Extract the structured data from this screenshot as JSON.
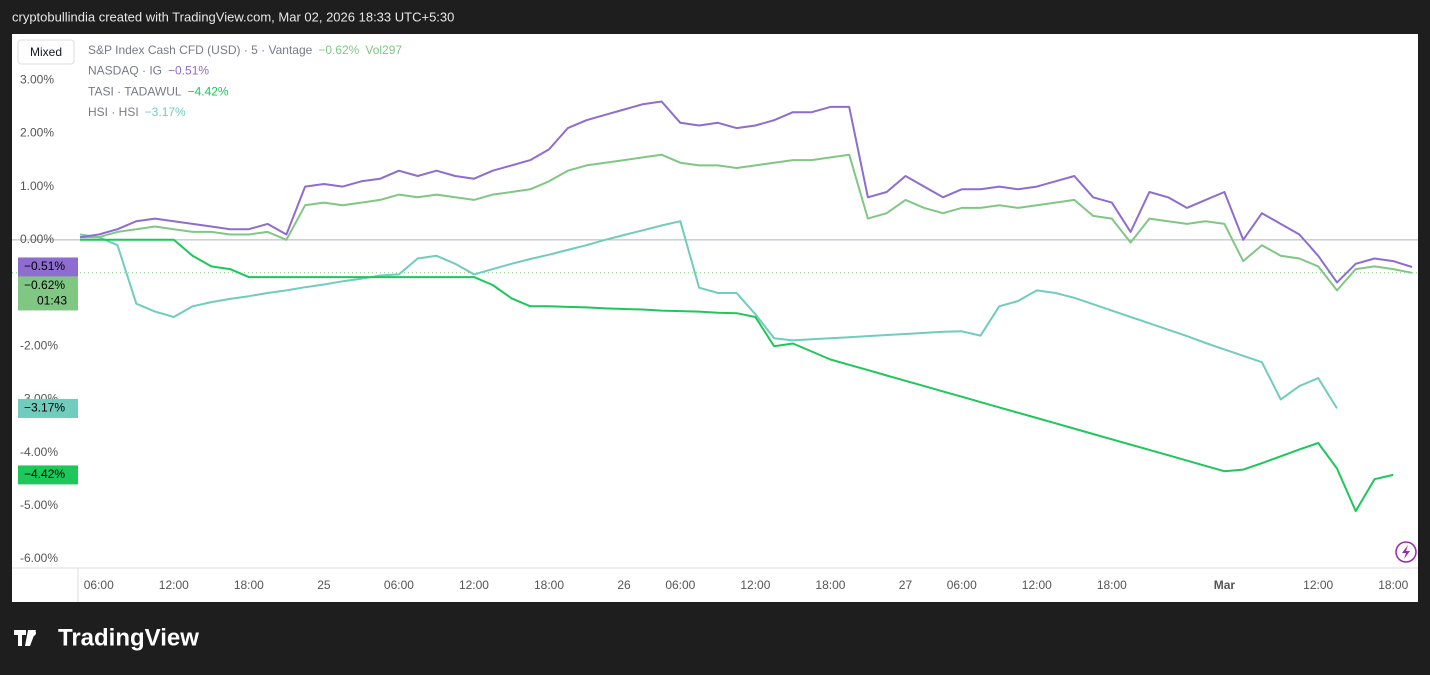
{
  "header": {
    "text": "cryptobullindia created with TradingView.com, Mar 02, 2026 18:33 UTC+5:30"
  },
  "footer": {
    "logo": "TradingView"
  },
  "toolbar": {
    "button": "Mixed"
  },
  "chart_data": {
    "type": "line",
    "categories": [
      null,
      "06:00",
      null,
      null,
      null,
      "12:00",
      null,
      null,
      null,
      "18:00",
      null,
      null,
      null,
      "25",
      null,
      null,
      null,
      "06:00",
      null,
      null,
      null,
      "12:00",
      null,
      null,
      null,
      "18:00",
      null,
      null,
      null,
      "26",
      null,
      null,
      "06:00",
      null,
      null,
      null,
      "12:00",
      null,
      null,
      null,
      "18:00",
      null,
      null,
      null,
      "27",
      null,
      null,
      "06:00",
      null,
      null,
      null,
      "12:00",
      null,
      null,
      null,
      "18:00",
      null,
      null,
      null,
      null,
      null,
      "Mar",
      null,
      null,
      null,
      null,
      "12:00",
      null,
      null,
      null,
      "18:00",
      null
    ],
    "ylim": [
      -6.17,
      3.87
    ],
    "yticks": [
      {
        "value": 3,
        "label": "3.00%"
      },
      {
        "value": 2,
        "label": "2.00%"
      },
      {
        "value": 1,
        "label": "1.00%"
      },
      {
        "value": 0,
        "label": "0.00%"
      },
      {
        "value": -1,
        "label": "-1.00%"
      },
      {
        "value": -2,
        "label": "-2.00%"
      },
      {
        "value": -3,
        "label": "-3.00%"
      },
      {
        "value": -4,
        "label": "-4.00%"
      },
      {
        "value": -5,
        "label": "-5.00%"
      },
      {
        "value": -6,
        "label": "-6.00%"
      }
    ],
    "grid": false,
    "countdown": "01:43",
    "volume": {
      "label": "Vol",
      "value": 297
    },
    "series": [
      {
        "name": "S&P Index Cash CFD (USD) · 5 · Vantage",
        "color": "#81c784",
        "change": "−0.62%",
        "values": [
          0.05,
          0.05,
          0.15,
          0.2,
          0.25,
          0.2,
          0.15,
          0.15,
          0.1,
          0.1,
          0.15,
          0.0,
          0.65,
          0.7,
          0.65,
          0.7,
          0.75,
          0.85,
          0.8,
          0.85,
          0.8,
          0.75,
          0.85,
          0.9,
          0.95,
          1.1,
          1.3,
          1.4,
          1.45,
          1.5,
          1.55,
          1.6,
          1.45,
          1.4,
          1.4,
          1.35,
          1.4,
          1.45,
          1.5,
          1.5,
          1.55,
          1.6,
          0.4,
          0.5,
          0.75,
          0.6,
          0.5,
          0.6,
          0.6,
          0.65,
          0.6,
          0.65,
          0.7,
          0.75,
          0.45,
          0.4,
          -0.05,
          0.4,
          0.35,
          0.3,
          0.35,
          0.3,
          -0.4,
          -0.1,
          -0.3,
          -0.35,
          -0.5,
          -0.95,
          -0.55,
          -0.5,
          -0.55,
          -0.62
        ]
      },
      {
        "name": "NASDAQ · IG",
        "color": "#8e6cd0",
        "change": "−0.51%",
        "values": [
          0.05,
          0.1,
          0.2,
          0.35,
          0.4,
          0.35,
          0.3,
          0.25,
          0.2,
          0.2,
          0.3,
          0.1,
          1.0,
          1.05,
          1.0,
          1.1,
          1.15,
          1.3,
          1.2,
          1.3,
          1.2,
          1.15,
          1.3,
          1.4,
          1.5,
          1.7,
          2.1,
          2.25,
          2.35,
          2.45,
          2.55,
          2.6,
          2.2,
          2.15,
          2.2,
          2.1,
          2.15,
          2.25,
          2.4,
          2.4,
          2.5,
          2.5,
          0.8,
          0.9,
          1.2,
          1.0,
          0.8,
          0.95,
          0.95,
          1.0,
          0.95,
          1.0,
          1.1,
          1.2,
          0.8,
          0.7,
          0.15,
          0.9,
          0.8,
          0.6,
          0.75,
          0.9,
          0.0,
          0.5,
          0.3,
          0.1,
          -0.3,
          -0.8,
          -0.45,
          -0.35,
          -0.4,
          -0.51
        ]
      },
      {
        "name": "TASI · TADAWUL",
        "color": "#1ec75a",
        "change": "−4.42%",
        "values": [
          0,
          0,
          0,
          0,
          0,
          0,
          -0.3,
          -0.5,
          -0.55,
          -0.7,
          -0.7,
          -0.7,
          -0.7,
          -0.7,
          -0.7,
          -0.7,
          -0.7,
          -0.7,
          -0.7,
          -0.7,
          -0.7,
          -0.7,
          -0.85,
          -1.1,
          -1.25,
          -1.25,
          -1.26,
          -1.27,
          -1.29,
          -1.3,
          -1.31,
          -1.33,
          -1.34,
          -1.35,
          -1.37,
          -1.38,
          -1.45,
          -2.0,
          -1.95,
          -2.1,
          -2.25,
          -2.35,
          -2.45,
          -2.55,
          -2.65,
          -2.75,
          -2.85,
          -2.95,
          -3.05,
          -3.15,
          -3.25,
          -3.35,
          -3.45,
          -3.55,
          -3.65,
          -3.75,
          -3.85,
          -3.95,
          -4.05,
          -4.15,
          -4.25,
          -4.35,
          -4.32,
          -4.2,
          -4.07,
          -3.94,
          -3.82,
          -4.3,
          -5.1,
          -4.5,
          -4.42,
          null
        ]
      },
      {
        "name": "HSI · HSI",
        "color": "#70ccbd",
        "change": "−3.17%",
        "values": [
          0.1,
          0.05,
          -0.1,
          -1.2,
          -1.35,
          -1.45,
          -1.25,
          -1.17,
          -1.11,
          -1.06,
          -1.0,
          -0.95,
          -0.89,
          -0.84,
          -0.78,
          -0.73,
          -0.67,
          -0.65,
          -0.35,
          -0.3,
          -0.45,
          -0.65,
          -0.55,
          -0.45,
          -0.36,
          -0.28,
          -0.19,
          -0.1,
          0.0,
          0.09,
          0.18,
          0.27,
          0.35,
          -0.9,
          -1.0,
          -1.0,
          -1.4,
          -1.85,
          -1.89,
          -1.87,
          -1.85,
          -1.83,
          -1.81,
          -1.79,
          -1.77,
          -1.75,
          -1.73,
          -1.72,
          -1.8,
          -1.25,
          -1.15,
          -0.95,
          -1.0,
          -1.09,
          -1.21,
          -1.33,
          -1.45,
          -1.57,
          -1.69,
          -1.81,
          -1.94,
          -2.06,
          -2.18,
          -2.3,
          -3.0,
          -2.75,
          -2.6,
          -3.17,
          null,
          null,
          null,
          null
        ]
      }
    ]
  }
}
